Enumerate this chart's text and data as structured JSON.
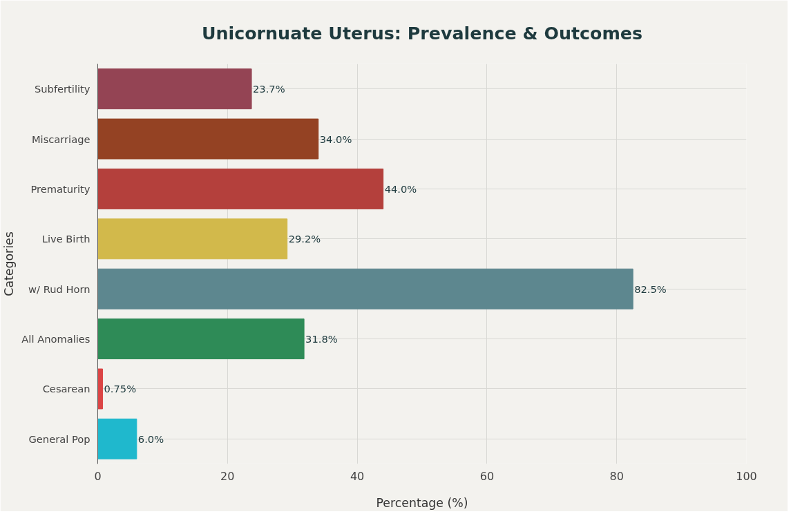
{
  "chart_data": {
    "type": "bar",
    "orientation": "horizontal",
    "title": "Unicornuate Uterus: Prevalence & Outcomes",
    "xlabel": "Percentage (%)",
    "ylabel": "Categories",
    "categories": [
      "Subfertility",
      "Miscarriage",
      "Prematurity",
      "Live Birth",
      "w/ Rud Horn",
      "All Anomalies",
      "Cesarean",
      "General Pop"
    ],
    "values": [
      23.7,
      34.0,
      44.0,
      29.2,
      82.5,
      31.8,
      0.75,
      6.0
    ],
    "value_labels": [
      "23.7%",
      "34.0%",
      "44.0%",
      "29.2%",
      "82.5%",
      "31.8%",
      "0.75%",
      "6.0%"
    ],
    "colors": [
      "#944454",
      "#944223",
      "#b4403c",
      "#d2b94b",
      "#5d878f",
      "#2e8b57",
      "#db4545",
      "#1fb8cd"
    ],
    "xlim": [
      0,
      100
    ],
    "xticks": [
      0,
      20,
      40,
      60,
      80,
      100
    ],
    "grid": true
  }
}
